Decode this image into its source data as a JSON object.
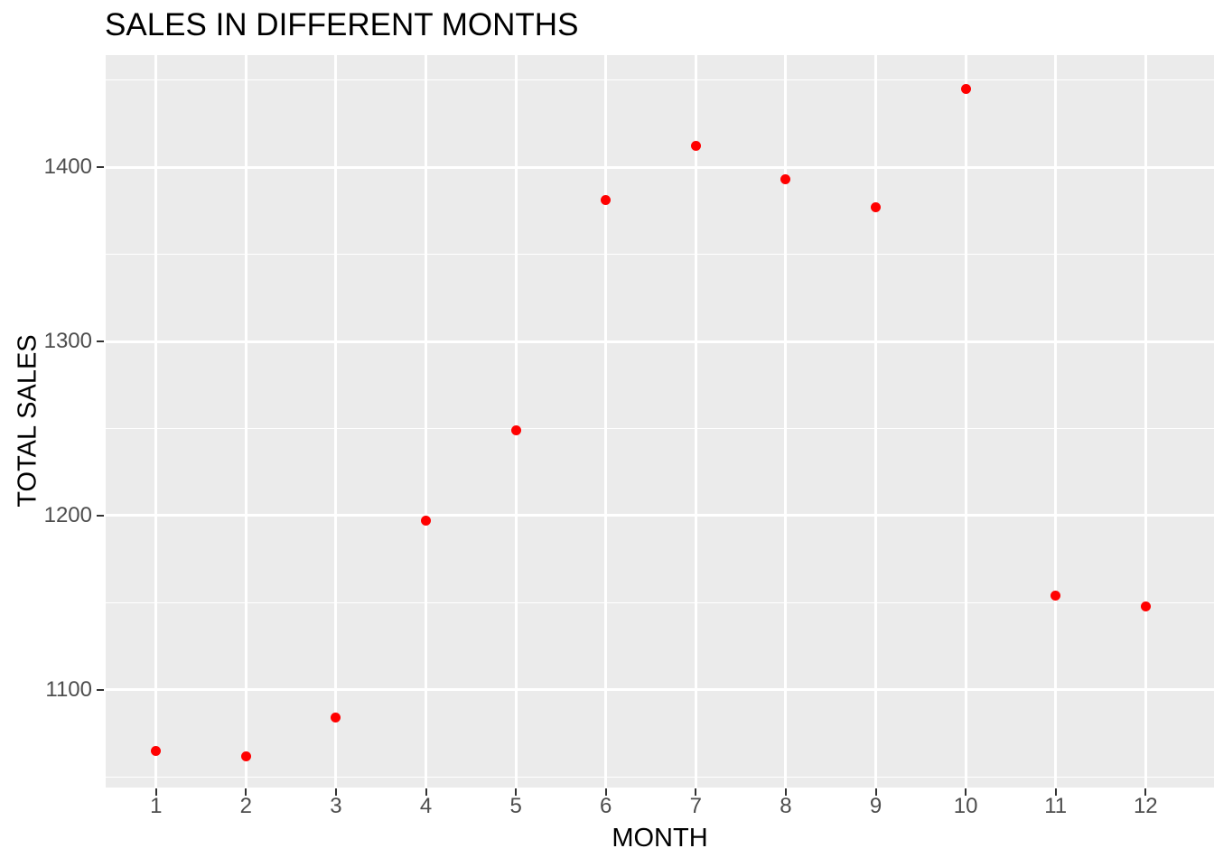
{
  "chart_data": {
    "type": "scatter",
    "title": "SALES IN DIFFERENT MONTHS",
    "xlabel": "MONTH",
    "ylabel": "TOTAL SALES",
    "x": [
      1,
      2,
      3,
      4,
      5,
      6,
      7,
      8,
      9,
      10,
      11,
      12
    ],
    "y": [
      1065,
      1062,
      1084,
      1197,
      1249,
      1381,
      1412,
      1393,
      1377,
      1445,
      1154,
      1148
    ],
    "x_ticks": [
      1,
      2,
      3,
      4,
      5,
      6,
      7,
      8,
      9,
      10,
      11,
      12
    ],
    "y_ticks": [
      1100,
      1200,
      1300,
      1400
    ],
    "y_minor_ticks": [
      1050,
      1150,
      1250,
      1350,
      1450
    ],
    "xlim": [
      0.44,
      12.76
    ],
    "ylim": [
      1044,
      1464.3
    ],
    "grid": "on",
    "legend_position": "none",
    "style": "ggplot2-gray-theme",
    "colors": {
      "point": "#FF0000",
      "panel_bg": "#EBEBEB",
      "grid": "#FFFFFF",
      "tick_label": "#4D4D4D",
      "tick_mark": "#333333",
      "title_text": "#000000",
      "axis_title_text": "#000000",
      "page_bg": "#FFFFFF"
    }
  }
}
